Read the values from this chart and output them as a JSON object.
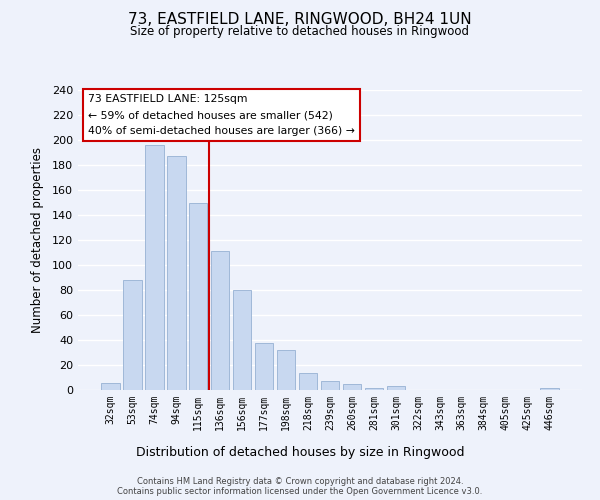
{
  "title": "73, EASTFIELD LANE, RINGWOOD, BH24 1UN",
  "subtitle": "Size of property relative to detached houses in Ringwood",
  "xlabel": "Distribution of detached houses by size in Ringwood",
  "ylabel": "Number of detached properties",
  "bin_labels": [
    "32sqm",
    "53sqm",
    "74sqm",
    "94sqm",
    "115sqm",
    "136sqm",
    "156sqm",
    "177sqm",
    "198sqm",
    "218sqm",
    "239sqm",
    "260sqm",
    "281sqm",
    "301sqm",
    "322sqm",
    "343sqm",
    "363sqm",
    "384sqm",
    "405sqm",
    "425sqm",
    "446sqm"
  ],
  "bar_values": [
    6,
    88,
    196,
    187,
    150,
    111,
    80,
    38,
    32,
    14,
    7,
    5,
    2,
    3,
    0,
    0,
    0,
    0,
    0,
    0,
    2
  ],
  "bar_color": "#c8d8f0",
  "bar_edge_color": "#a0b8d8",
  "vline_color": "#cc0000",
  "ylim": [
    0,
    240
  ],
  "yticks": [
    0,
    20,
    40,
    60,
    80,
    100,
    120,
    140,
    160,
    180,
    200,
    220,
    240
  ],
  "annotation_title": "73 EASTFIELD LANE: 125sqm",
  "annotation_line1": "← 59% of detached houses are smaller (542)",
  "annotation_line2": "40% of semi-detached houses are larger (366) →",
  "annotation_box_color": "#ffffff",
  "annotation_box_edge": "#cc0000",
  "footer_line1": "Contains HM Land Registry data © Crown copyright and database right 2024.",
  "footer_line2": "Contains public sector information licensed under the Open Government Licence v3.0.",
  "background_color": "#eef2fb",
  "grid_color": "#ffffff"
}
